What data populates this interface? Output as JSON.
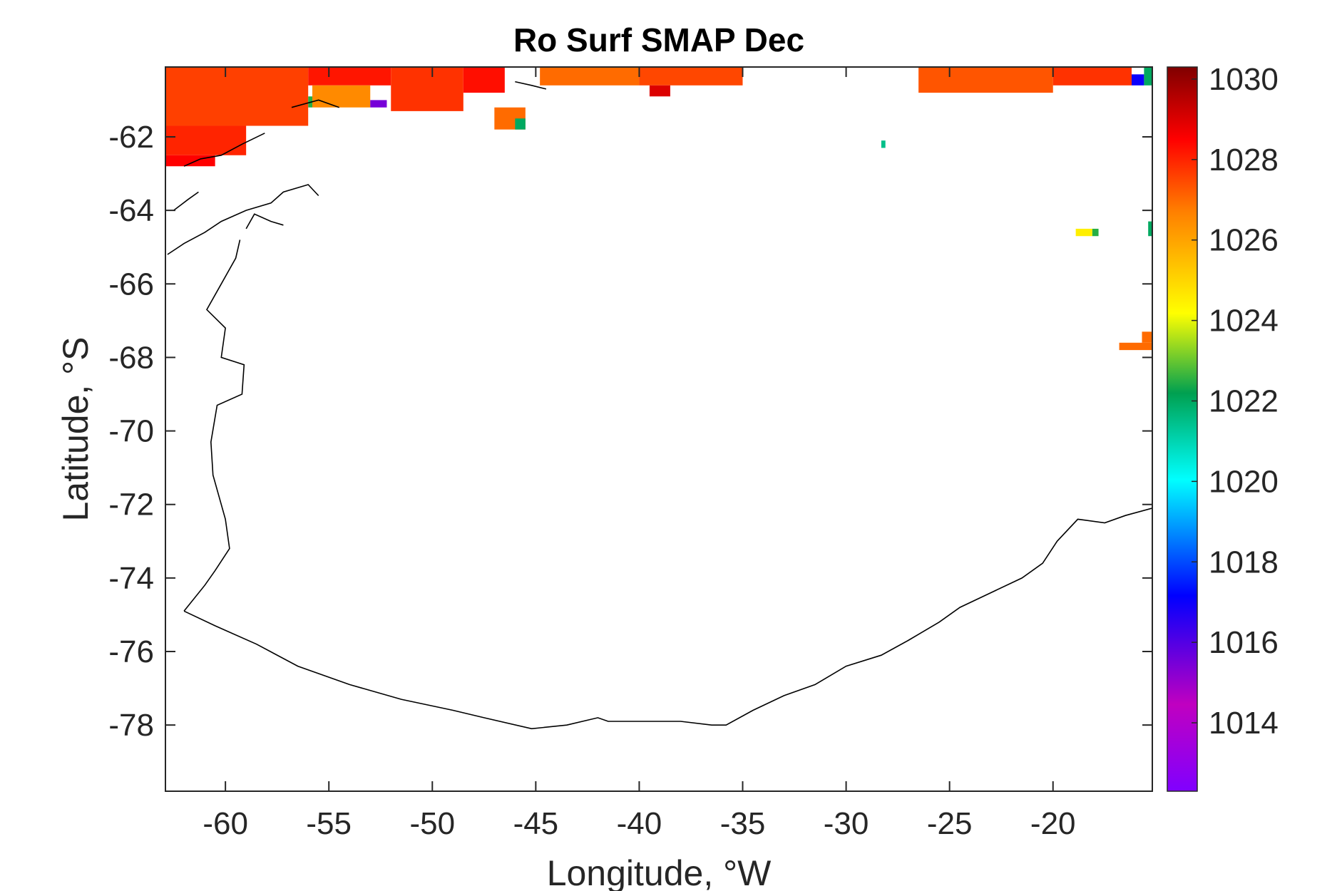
{
  "chart_data": {
    "type": "heatmap",
    "title": "Ro Surf SMAP Dec",
    "xlabel": "Longitude, °W",
    "ylabel": "Latitude, °S",
    "xlim": [
      -62.9,
      -15.2
    ],
    "ylim": [
      -79.8,
      -60.1
    ],
    "xticks": [
      -60,
      -55,
      -50,
      -45,
      -40,
      -35,
      -30,
      -25,
      -20
    ],
    "yticks": [
      -62,
      -64,
      -66,
      -68,
      -70,
      -72,
      -74,
      -76,
      -78
    ],
    "grid": false,
    "colorbar": {
      "location": "right",
      "range": [
        1012.3,
        1030.3
      ],
      "ticks": [
        1014,
        1016,
        1018,
        1020,
        1022,
        1024,
        1026,
        1028,
        1030
      ],
      "colormap": "jet-like (purple-blue-cyan-green-yellow-orange-red-darkred)"
    },
    "data_coverage": "Mostly sea ice / no data (white); valid density values only along the northern edge (about 60.1°S–62.7°S) and isolated pixels near the eastern edge.",
    "cells": [
      {
        "lon_range": [
          -62.9,
          -56.0
        ],
        "lat_range": [
          -61.7,
          -60.1
        ],
        "value": 1027.6
      },
      {
        "lon_range": [
          -62.9,
          -59.0
        ],
        "lat_range": [
          -62.5,
          -61.7
        ],
        "value": 1028.0
      },
      {
        "lon_range": [
          -62.9,
          -60.5
        ],
        "lat_range": [
          -62.8,
          -62.5
        ],
        "value": 1028.5
      },
      {
        "lon_range": [
          -56.0,
          -52.0
        ],
        "lat_range": [
          -60.6,
          -60.1
        ],
        "value": 1028.2
      },
      {
        "lon_range": [
          -56.0,
          -55.8
        ],
        "lat_range": [
          -61.2,
          -60.9
        ],
        "value": 1022.5
      },
      {
        "lon_range": [
          -55.8,
          -53.0
        ],
        "lat_range": [
          -61.2,
          -60.6
        ],
        "value": 1026.5
      },
      {
        "lon_range": [
          -53.0,
          -52.2
        ],
        "lat_range": [
          -61.2,
          -61.0
        ],
        "value": 1015.5
      },
      {
        "lon_range": [
          -52.0,
          -48.5
        ],
        "lat_range": [
          -61.3,
          -60.1
        ],
        "value": 1027.8
      },
      {
        "lon_range": [
          -48.5,
          -46.5
        ],
        "lat_range": [
          -60.8,
          -60.1
        ],
        "value": 1028.3
      },
      {
        "lon_range": [
          -47.0,
          -45.5
        ],
        "lat_range": [
          -61.8,
          -61.2
        ],
        "value": 1027.0
      },
      {
        "lon_range": [
          -46.0,
          -45.5
        ],
        "lat_range": [
          -61.8,
          -61.5
        ],
        "value": 1022.0
      },
      {
        "lon_range": [
          -44.8,
          -40.0
        ],
        "lat_range": [
          -60.6,
          -60.1
        ],
        "value": 1027.0
      },
      {
        "lon_range": [
          -40.0,
          -35.0
        ],
        "lat_range": [
          -60.6,
          -60.1
        ],
        "value": 1027.5
      },
      {
        "lon_range": [
          -39.5,
          -38.5
        ],
        "lat_range": [
          -60.9,
          -60.6
        ],
        "value": 1029.0
      },
      {
        "lon_range": [
          -28.3,
          -28.1
        ],
        "lat_range": [
          -62.3,
          -62.1
        ],
        "value": 1021.5
      },
      {
        "lon_range": [
          -26.5,
          -20.0
        ],
        "lat_range": [
          -60.8,
          -60.1
        ],
        "value": 1027.3
      },
      {
        "lon_range": [
          -20.0,
          -16.2
        ],
        "lat_range": [
          -60.6,
          -60.1
        ],
        "value": 1027.8
      },
      {
        "lon_range": [
          -16.2,
          -15.6
        ],
        "lat_range": [
          -60.6,
          -60.3
        ],
        "value": 1017.0
      },
      {
        "lon_range": [
          -15.6,
          -15.2
        ],
        "lat_range": [
          -60.6,
          -60.1
        ],
        "value": 1022.0
      },
      {
        "lon_range": [
          -18.9,
          -18.1
        ],
        "lat_range": [
          -64.7,
          -64.5
        ],
        "value": 1024.5
      },
      {
        "lon_range": [
          -18.1,
          -17.8
        ],
        "lat_range": [
          -64.7,
          -64.5
        ],
        "value": 1022.5
      },
      {
        "lon_range": [
          -15.4,
          -15.2
        ],
        "lat_range": [
          -64.7,
          -64.3
        ],
        "value": 1022.0
      },
      {
        "lon_range": [
          -16.8,
          -15.2
        ],
        "lat_range": [
          -67.8,
          -67.6
        ],
        "value": 1027.0
      },
      {
        "lon_range": [
          -15.7,
          -15.2
        ],
        "lat_range": [
          -67.6,
          -67.3
        ],
        "value": 1027.0
      }
    ],
    "coastline": [
      [
        -62.0,
        -74.9
      ],
      [
        -60.5,
        -75.3
      ],
      [
        -58.5,
        -75.8
      ],
      [
        -56.5,
        -76.4
      ],
      [
        -54.0,
        -76.9
      ],
      [
        -51.5,
        -77.3
      ],
      [
        -49.0,
        -77.6
      ],
      [
        -47.5,
        -77.8
      ],
      [
        -45.2,
        -78.1
      ],
      [
        -43.5,
        -78.0
      ],
      [
        -42.0,
        -77.8
      ],
      [
        -41.5,
        -77.9
      ],
      [
        -40.0,
        -77.9
      ],
      [
        -38.0,
        -77.9
      ],
      [
        -36.5,
        -78.0
      ],
      [
        -35.8,
        -78.0
      ],
      [
        -34.5,
        -77.6
      ],
      [
        -33.0,
        -77.2
      ],
      [
        -31.5,
        -76.9
      ],
      [
        -30.0,
        -76.4
      ],
      [
        -28.3,
        -76.1
      ],
      [
        -27.0,
        -75.7
      ],
      [
        -25.5,
        -75.2
      ],
      [
        -24.5,
        -74.8
      ],
      [
        -23.0,
        -74.4
      ],
      [
        -21.5,
        -74.0
      ],
      [
        -20.5,
        -73.6
      ],
      [
        -19.8,
        -73.0
      ],
      [
        -18.8,
        -72.4
      ],
      [
        -17.5,
        -72.5
      ],
      [
        -16.5,
        -72.3
      ],
      [
        -15.2,
        -72.1
      ]
    ],
    "west_coast": [
      [
        -62.0,
        -74.9
      ],
      [
        -61.0,
        -74.2
      ],
      [
        -60.5,
        -73.8
      ],
      [
        -59.8,
        -73.2
      ],
      [
        -60.0,
        -72.4
      ],
      [
        -60.6,
        -71.2
      ],
      [
        -60.7,
        -70.3
      ],
      [
        -60.4,
        -69.3
      ],
      [
        -59.2,
        -69.0
      ],
      [
        -59.1,
        -68.2
      ],
      [
        -60.2,
        -68.0
      ],
      [
        -60.0,
        -67.2
      ],
      [
        -60.9,
        -66.7
      ],
      [
        -60.2,
        -66.0
      ],
      [
        -59.5,
        -65.3
      ],
      [
        -59.3,
        -64.8
      ]
    ],
    "peninsula_islands": [
      [
        [
          -62.8,
          -65.2
        ],
        [
          -62.0,
          -64.9
        ],
        [
          -61.0,
          -64.6
        ],
        [
          -60.2,
          -64.3
        ],
        [
          -59.0,
          -64.0
        ],
        [
          -57.8,
          -63.8
        ],
        [
          -57.2,
          -63.5
        ],
        [
          -56.0,
          -63.3
        ],
        [
          -55.5,
          -63.6
        ]
      ],
      [
        [
          -62.5,
          -64.0
        ],
        [
          -61.8,
          -63.7
        ],
        [
          -61.3,
          -63.5
        ]
      ],
      [
        [
          -59.0,
          -64.5
        ],
        [
          -58.6,
          -64.1
        ],
        [
          -57.8,
          -64.3
        ],
        [
          -57.2,
          -64.4
        ]
      ],
      [
        [
          -62.0,
          -62.8
        ],
        [
          -61.2,
          -62.6
        ],
        [
          -60.2,
          -62.5
        ],
        [
          -59.2,
          -62.2
        ],
        [
          -58.1,
          -61.9
        ]
      ],
      [
        [
          -56.8,
          -61.2
        ],
        [
          -55.5,
          -61.0
        ],
        [
          -54.5,
          -61.2
        ]
      ],
      [
        [
          -46.0,
          -60.5
        ],
        [
          -45.2,
          -60.6
        ],
        [
          -44.5,
          -60.7
        ]
      ]
    ]
  }
}
